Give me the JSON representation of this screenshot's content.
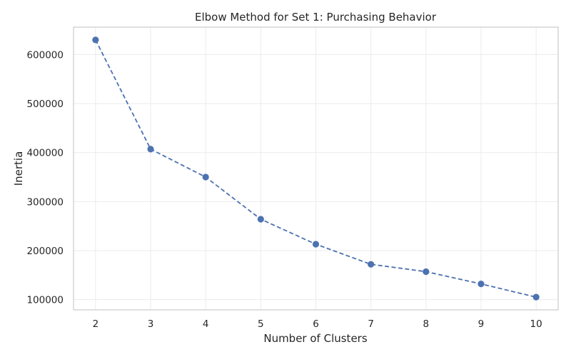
{
  "chart_data": {
    "type": "line",
    "title": "Elbow Method for Set 1: Purchasing Behavior",
    "xlabel": "Number of Clusters",
    "ylabel": "Inertia",
    "x": [
      2,
      3,
      4,
      5,
      6,
      7,
      8,
      9,
      10
    ],
    "y": [
      630000,
      407000,
      350000,
      264000,
      213000,
      172000,
      157000,
      132000,
      105000
    ],
    "xticks": [
      2,
      3,
      4,
      5,
      6,
      7,
      8,
      9,
      10
    ],
    "yticks": [
      100000,
      200000,
      300000,
      400000,
      500000,
      600000
    ],
    "xlim": [
      1.6,
      10.4
    ],
    "ylim": [
      79000,
      656000
    ],
    "grid": true,
    "line_style": "dashed",
    "marker": "circle",
    "color": "#4c72b0"
  }
}
